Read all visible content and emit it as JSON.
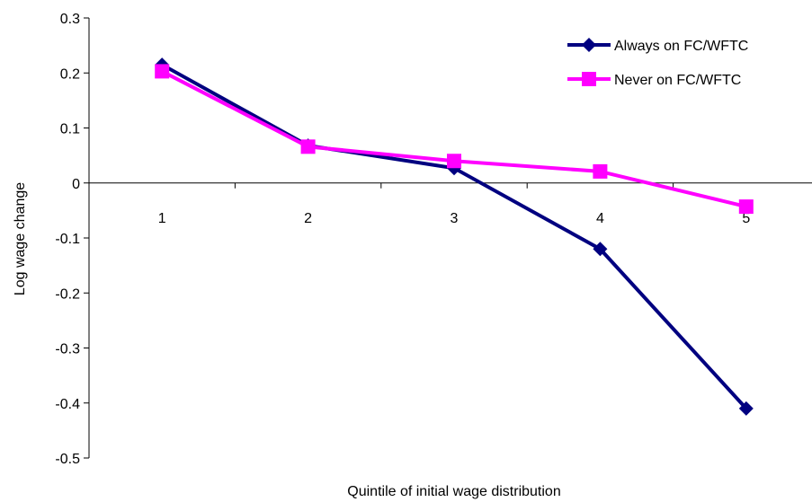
{
  "chart_data": {
    "type": "line",
    "categories": [
      "1",
      "2",
      "3",
      "4",
      "5"
    ],
    "series": [
      {
        "name": "Always on FC/WFTC",
        "values": [
          0.215,
          0.068,
          0.027,
          -0.12,
          -0.41
        ],
        "color": "#000080",
        "marker": "diamond"
      },
      {
        "name": "Never on FC/WFTC",
        "values": [
          0.203,
          0.066,
          0.04,
          0.021,
          -0.043
        ],
        "color": "#ff00ff",
        "marker": "square"
      }
    ],
    "title": "",
    "xlabel": "Quintile of initial wage distribution",
    "ylabel": "Log wage change",
    "ylim": [
      -0.5,
      0.3
    ],
    "yticks": [
      0.3,
      0.2,
      0.1,
      0,
      -0.1,
      -0.2,
      -0.3,
      -0.4,
      -0.5
    ],
    "ytick_labels": [
      "0.3",
      "0.2",
      "0.1",
      "0",
      "-0.1",
      "-0.2",
      "-0.3",
      "-0.4",
      "-0.5"
    ],
    "grid": false,
    "legend_position": "top-right"
  }
}
